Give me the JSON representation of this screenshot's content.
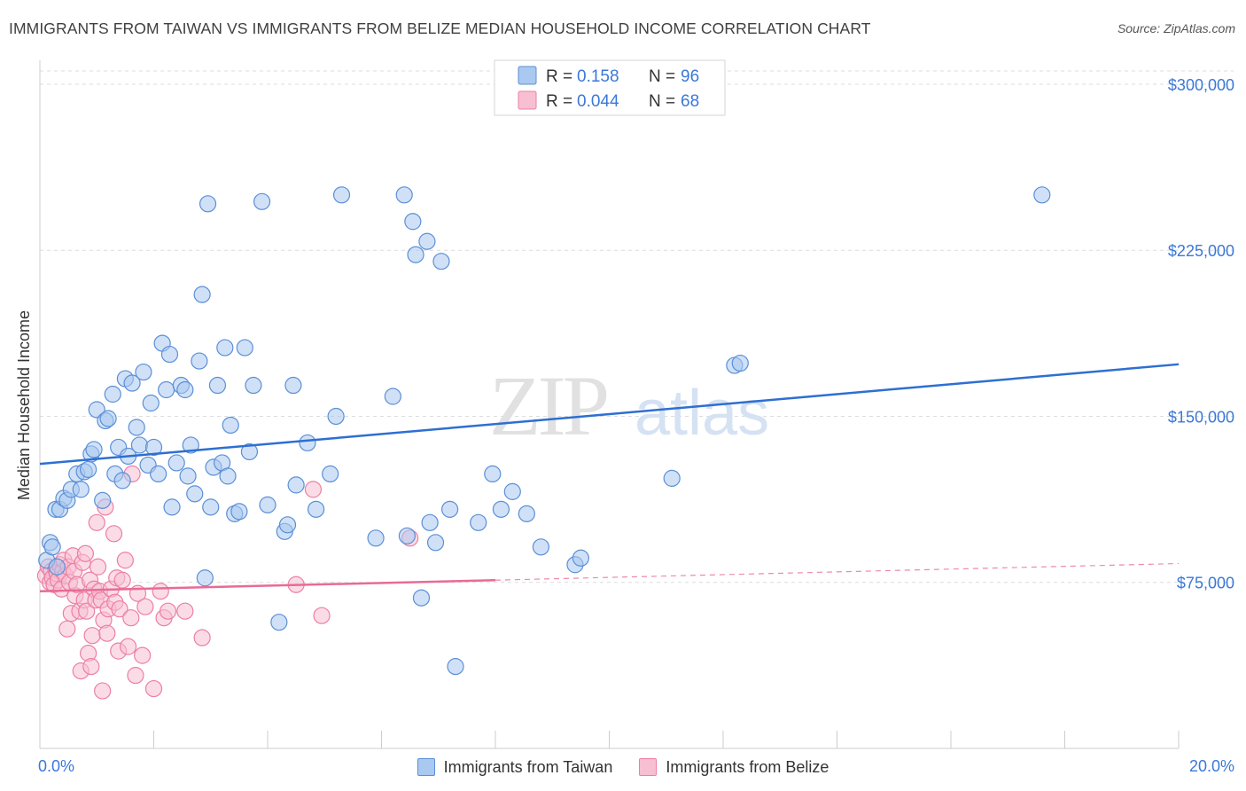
{
  "header": {
    "title": "IMMIGRANTS FROM TAIWAN VS IMMIGRANTS FROM BELIZE MEDIAN HOUSEHOLD INCOME CORRELATION CHART",
    "source": "Source: ZipAtlas.com"
  },
  "watermark": {
    "zip": "ZIP",
    "atlas": "atlas"
  },
  "colors": {
    "taiwan_fill": "#aac9f0",
    "taiwan_stroke": "#5b8fd6",
    "taiwan_line": "#2d6fd2",
    "belize_fill": "#f8bfd2",
    "belize_stroke": "#ec7fa3",
    "belize_line": "#e86b95",
    "value_text": "#3b78d8"
  },
  "legend": {
    "rows": [
      {
        "r_label": "R =",
        "r_value": "0.158",
        "n_label": "N =",
        "n_value": "96"
      },
      {
        "r_label": "R =",
        "r_value": "0.044",
        "n_label": "N =",
        "n_value": "68"
      }
    ]
  },
  "chart_data": {
    "type": "scatter",
    "title": "IMMIGRANTS FROM TAIWAN VS IMMIGRANTS FROM BELIZE MEDIAN HOUSEHOLD INCOME CORRELATION CHART",
    "xlabel": "",
    "ylabel": "Median Household Income",
    "xlim": [
      0,
      20
    ],
    "ylim": [
      0,
      310000
    ],
    "x_tick_labels": [
      "0.0%",
      "20.0%"
    ],
    "y_ticks": [
      75000,
      150000,
      225000,
      300000
    ],
    "y_tick_labels": [
      "$75,000",
      "$150,000",
      "$225,000",
      "$300,000"
    ],
    "grid": true,
    "series": [
      {
        "name": "Immigrants from Taiwan",
        "color": "#5b8fd6",
        "trend": {
          "x": [
            0,
            20
          ],
          "y": [
            128500,
            173500
          ],
          "style": "solid"
        },
        "points": [
          [
            0.12,
            85000
          ],
          [
            0.18,
            93000
          ],
          [
            0.22,
            91000
          ],
          [
            0.28,
            108000
          ],
          [
            0.35,
            108000
          ],
          [
            0.42,
            113000
          ],
          [
            0.48,
            112000
          ],
          [
            0.55,
            117000
          ],
          [
            0.65,
            124000
          ],
          [
            0.72,
            117000
          ],
          [
            0.78,
            125000
          ],
          [
            0.85,
            126000
          ],
          [
            0.9,
            133000
          ],
          [
            0.95,
            135000
          ],
          [
            1.0,
            153000
          ],
          [
            1.1,
            112000
          ],
          [
            1.15,
            148000
          ],
          [
            1.2,
            149000
          ],
          [
            1.28,
            160000
          ],
          [
            1.32,
            124000
          ],
          [
            1.38,
            136000
          ],
          [
            1.45,
            121000
          ],
          [
            1.5,
            167000
          ],
          [
            1.55,
            132000
          ],
          [
            1.62,
            165000
          ],
          [
            1.7,
            145000
          ],
          [
            1.75,
            137000
          ],
          [
            1.82,
            170000
          ],
          [
            1.9,
            128000
          ],
          [
            1.95,
            156000
          ],
          [
            2.0,
            136000
          ],
          [
            2.08,
            124000
          ],
          [
            2.15,
            183000
          ],
          [
            2.22,
            162000
          ],
          [
            2.28,
            178000
          ],
          [
            2.32,
            109000
          ],
          [
            2.4,
            129000
          ],
          [
            2.48,
            164000
          ],
          [
            2.55,
            162000
          ],
          [
            2.6,
            123000
          ],
          [
            2.65,
            137000
          ],
          [
            2.72,
            115000
          ],
          [
            2.8,
            175000
          ],
          [
            2.85,
            205000
          ],
          [
            2.9,
            77000
          ],
          [
            2.95,
            246000
          ],
          [
            3.0,
            109000
          ],
          [
            3.05,
            127000
          ],
          [
            3.12,
            164000
          ],
          [
            3.2,
            129000
          ],
          [
            3.25,
            181000
          ],
          [
            3.3,
            123000
          ],
          [
            3.35,
            146000
          ],
          [
            3.42,
            106000
          ],
          [
            3.5,
            107000
          ],
          [
            3.6,
            181000
          ],
          [
            3.68,
            134000
          ],
          [
            3.75,
            164000
          ],
          [
            3.9,
            247000
          ],
          [
            4.0,
            110000
          ],
          [
            4.2,
            57000
          ],
          [
            4.3,
            98000
          ],
          [
            4.35,
            101000
          ],
          [
            4.45,
            164000
          ],
          [
            4.5,
            119000
          ],
          [
            4.7,
            138000
          ],
          [
            4.85,
            108000
          ],
          [
            5.1,
            124000
          ],
          [
            5.2,
            150000
          ],
          [
            5.3,
            250000
          ],
          [
            5.9,
            95000
          ],
          [
            6.2,
            159000
          ],
          [
            6.4,
            250000
          ],
          [
            6.45,
            96000
          ],
          [
            6.55,
            238000
          ],
          [
            6.6,
            223000
          ],
          [
            6.7,
            68000
          ],
          [
            6.8,
            229000
          ],
          [
            6.85,
            102000
          ],
          [
            6.95,
            93000
          ],
          [
            7.05,
            220000
          ],
          [
            7.2,
            108000
          ],
          [
            7.3,
            37000
          ],
          [
            7.7,
            102000
          ],
          [
            7.95,
            124000
          ],
          [
            8.1,
            108000
          ],
          [
            8.3,
            116000
          ],
          [
            8.55,
            106000
          ],
          [
            8.8,
            91000
          ],
          [
            9.4,
            83000
          ],
          [
            9.5,
            86000
          ],
          [
            11.1,
            122000
          ],
          [
            12.2,
            173000
          ],
          [
            12.3,
            174000
          ],
          [
            17.6,
            250000
          ],
          [
            0.3,
            82000
          ]
        ]
      },
      {
        "name": "Immigrants from Belize",
        "color": "#ec7fa3",
        "trend": {
          "x": [
            0,
            8
          ],
          "y": [
            71000,
            76000
          ],
          "style": "solid"
        },
        "trend_extension": {
          "x": [
            8,
            20
          ],
          "y": [
            76000,
            83500
          ],
          "style": "dashed"
        },
        "points": [
          [
            0.1,
            78000
          ],
          [
            0.15,
            82000
          ],
          [
            0.18,
            75000
          ],
          [
            0.2,
            80000
          ],
          [
            0.22,
            77000
          ],
          [
            0.25,
            74000
          ],
          [
            0.28,
            81000
          ],
          [
            0.3,
            79000
          ],
          [
            0.32,
            76000
          ],
          [
            0.35,
            83000
          ],
          [
            0.38,
            72000
          ],
          [
            0.4,
            80000
          ],
          [
            0.42,
            85000
          ],
          [
            0.45,
            78000
          ],
          [
            0.48,
            54000
          ],
          [
            0.5,
            82000
          ],
          [
            0.52,
            75000
          ],
          [
            0.55,
            61000
          ],
          [
            0.58,
            87000
          ],
          [
            0.6,
            80000
          ],
          [
            0.62,
            69000
          ],
          [
            0.65,
            74000
          ],
          [
            0.7,
            62000
          ],
          [
            0.72,
            35000
          ],
          [
            0.75,
            84000
          ],
          [
            0.78,
            67000
          ],
          [
            0.8,
            88000
          ],
          [
            0.82,
            62000
          ],
          [
            0.85,
            43000
          ],
          [
            0.88,
            76000
          ],
          [
            0.9,
            37000
          ],
          [
            0.92,
            51000
          ],
          [
            0.95,
            72000
          ],
          [
            0.98,
            67000
          ],
          [
            1.0,
            102000
          ],
          [
            1.02,
            82000
          ],
          [
            1.05,
            71000
          ],
          [
            1.08,
            67000
          ],
          [
            1.1,
            26000
          ],
          [
            1.12,
            58000
          ],
          [
            1.15,
            109000
          ],
          [
            1.18,
            52000
          ],
          [
            1.2,
            63000
          ],
          [
            1.25,
            72000
          ],
          [
            1.3,
            97000
          ],
          [
            1.32,
            66000
          ],
          [
            1.35,
            77000
          ],
          [
            1.38,
            44000
          ],
          [
            1.4,
            63000
          ],
          [
            1.45,
            76000
          ],
          [
            1.5,
            85000
          ],
          [
            1.55,
            46000
          ],
          [
            1.6,
            59000
          ],
          [
            1.62,
            124000
          ],
          [
            1.68,
            33000
          ],
          [
            1.72,
            70000
          ],
          [
            1.8,
            42000
          ],
          [
            1.85,
            64000
          ],
          [
            2.0,
            27000
          ],
          [
            2.12,
            71000
          ],
          [
            2.18,
            59000
          ],
          [
            2.25,
            62000
          ],
          [
            2.55,
            62000
          ],
          [
            2.85,
            50000
          ],
          [
            4.5,
            74000
          ],
          [
            4.8,
            117000
          ],
          [
            4.95,
            60000
          ],
          [
            6.5,
            95000
          ]
        ]
      }
    ]
  },
  "bottom_legend": {
    "taiwan_label": "Immigrants from Taiwan",
    "belize_label": "Immigrants from Belize"
  }
}
